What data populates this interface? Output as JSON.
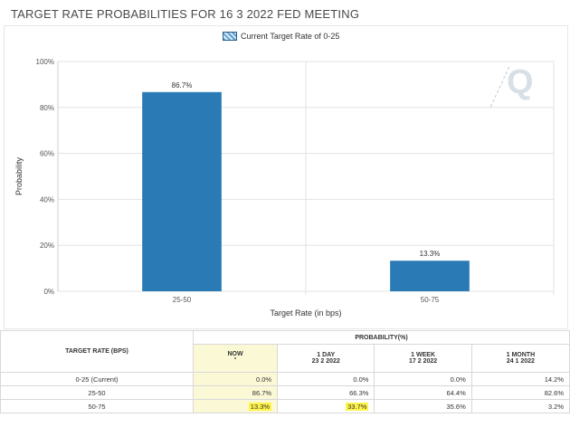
{
  "page": {
    "title": "TARGET RATE PROBABILITIES FOR 16 3 2022 FED MEETING",
    "watermark": "Q"
  },
  "chart_data": {
    "type": "bar",
    "title": "TARGET RATE PROBABILITIES FOR 16 3 2022 FED MEETING",
    "categories": [
      "25-50",
      "50-75"
    ],
    "series": [
      {
        "name": "Current Target Rate of 0-25",
        "values": [
          86.7,
          13.3
        ]
      }
    ],
    "data_labels": [
      "86.7%",
      "13.3%"
    ],
    "xlabel": "Target Rate (in bps)",
    "ylabel": "Probability",
    "ylim": [
      0,
      100
    ],
    "yticks": [
      "0%",
      "20%",
      "40%",
      "60%",
      "80%",
      "100%"
    ],
    "ytick_values": [
      0,
      20,
      40,
      60,
      80,
      100
    ],
    "grid": true,
    "legend_position": "top",
    "colors": {
      "bar": "#2a7ab5",
      "grid": "#e3e3e3",
      "highlight": "#fff44a"
    }
  },
  "table": {
    "header": {
      "target_rate": "TARGET RATE (BPS)",
      "probability": "PROBABILITY(%)",
      "cols": [
        {
          "line1": "NOW",
          "line2": "",
          "sup": "*"
        },
        {
          "line1": "1 DAY",
          "line2": "23 2 2022",
          "sup": ""
        },
        {
          "line1": "1 WEEK",
          "line2": "17 2 2022",
          "sup": ""
        },
        {
          "line1": "1 MONTH",
          "line2": "24 1 2022",
          "sup": ""
        }
      ]
    },
    "rows": [
      {
        "label": "0-25 (Current)",
        "values": [
          "0.0%",
          "0.0%",
          "0.0%",
          "14.2%"
        ]
      },
      {
        "label": "25-50",
        "values": [
          "86.7%",
          "66.3%",
          "64.4%",
          "82.6%"
        ]
      },
      {
        "label": "50-75",
        "values": [
          "13.3%",
          "33.7%",
          "35.6%",
          "3.2%"
        ]
      }
    ]
  }
}
